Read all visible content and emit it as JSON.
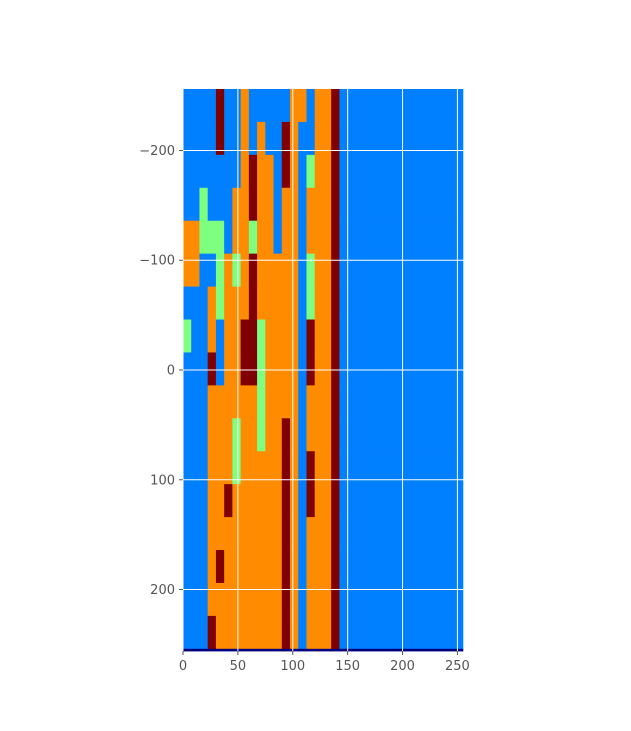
{
  "chart_data": {
    "type": "heatmap",
    "title": "",
    "xlabel": "",
    "ylabel": "",
    "colormap": "jet",
    "xlim": [
      0,
      256
    ],
    "ylim": [
      256,
      -256
    ],
    "grid": true,
    "x_ticks": [
      {
        "value": 0,
        "label": "0"
      },
      {
        "value": 50,
        "label": "50"
      },
      {
        "value": 100,
        "label": "100"
      },
      {
        "value": 150,
        "label": "150"
      },
      {
        "value": 200,
        "label": "200"
      },
      {
        "value": 250,
        "label": "250"
      }
    ],
    "y_ticks": [
      {
        "value": -200,
        "label": "−200"
      },
      {
        "value": -100,
        "label": "−100"
      },
      {
        "value": 0,
        "label": "0"
      },
      {
        "value": 100,
        "label": "100"
      },
      {
        "value": 200,
        "label": "200"
      }
    ],
    "level_colors": [
      "#00007f",
      "#007fff",
      "#7fff7f",
      "#ff8c00",
      "#7f0000"
    ],
    "column_width": 7.5,
    "row_height": 30,
    "rows_from_y": -256,
    "columns": [
      [
        1,
        1,
        1,
        1,
        3,
        3,
        1,
        2,
        1,
        1,
        1,
        1,
        1,
        1,
        1,
        1,
        1,
        0
      ],
      [
        1,
        1,
        1,
        1,
        3,
        3,
        1,
        1,
        1,
        1,
        1,
        1,
        1,
        1,
        1,
        1,
        1,
        0
      ],
      [
        1,
        1,
        1,
        2,
        2,
        1,
        1,
        1,
        1,
        1,
        1,
        1,
        1,
        1,
        1,
        1,
        1,
        0
      ],
      [
        1,
        1,
        1,
        1,
        2,
        1,
        3,
        3,
        4,
        3,
        3,
        3,
        3,
        3,
        3,
        3,
        4,
        0
      ],
      [
        4,
        4,
        1,
        1,
        2,
        2,
        2,
        1,
        1,
        3,
        3,
        3,
        3,
        3,
        4,
        3,
        3,
        0
      ],
      [
        1,
        1,
        1,
        1,
        1,
        3,
        3,
        3,
        3,
        3,
        3,
        3,
        4,
        3,
        3,
        3,
        3,
        0
      ],
      [
        1,
        1,
        1,
        3,
        3,
        2,
        3,
        3,
        3,
        3,
        2,
        2,
        3,
        3,
        3,
        3,
        3,
        0
      ],
      [
        3,
        3,
        3,
        3,
        3,
        3,
        3,
        4,
        4,
        3,
        3,
        3,
        3,
        3,
        3,
        3,
        3,
        0
      ],
      [
        1,
        1,
        4,
        4,
        2,
        4,
        4,
        4,
        4,
        3,
        3,
        3,
        3,
        3,
        3,
        3,
        3,
        0
      ],
      [
        1,
        3,
        3,
        3,
        3,
        3,
        3,
        2,
        2,
        2,
        2,
        3,
        3,
        3,
        3,
        3,
        3,
        0
      ],
      [
        1,
        1,
        3,
        3,
        3,
        3,
        3,
        3,
        3,
        3,
        3,
        3,
        3,
        3,
        3,
        3,
        3,
        0
      ],
      [
        1,
        1,
        1,
        1,
        1,
        3,
        3,
        3,
        3,
        3,
        3,
        3,
        3,
        3,
        3,
        3,
        3,
        0
      ],
      [
        1,
        4,
        4,
        3,
        3,
        3,
        3,
        3,
        3,
        3,
        4,
        4,
        4,
        4,
        4,
        4,
        4,
        0
      ],
      [
        3,
        3,
        3,
        3,
        3,
        3,
        3,
        3,
        3,
        3,
        3,
        3,
        3,
        3,
        3,
        3,
        3,
        0
      ],
      [
        3,
        1,
        1,
        1,
        1,
        1,
        1,
        1,
        1,
        1,
        1,
        1,
        1,
        1,
        1,
        1,
        1,
        0
      ],
      [
        1,
        1,
        2,
        3,
        3,
        2,
        2,
        4,
        4,
        3,
        3,
        4,
        4,
        3,
        3,
        3,
        3,
        0
      ],
      [
        3,
        3,
        3,
        3,
        3,
        3,
        3,
        3,
        3,
        3,
        3,
        3,
        3,
        3,
        3,
        3,
        3,
        0
      ],
      [
        3,
        3,
        3,
        3,
        3,
        3,
        3,
        3,
        3,
        3,
        3,
        3,
        3,
        3,
        3,
        3,
        3,
        0
      ],
      [
        4,
        4,
        4,
        4,
        4,
        4,
        4,
        4,
        4,
        4,
        4,
        4,
        4,
        4,
        4,
        4,
        4,
        0
      ],
      [
        1,
        1,
        1,
        1,
        1,
        1,
        1,
        1,
        1,
        1,
        1,
        1,
        1,
        1,
        1,
        1,
        1,
        0
      ],
      [
        1,
        1,
        1,
        1,
        1,
        1,
        1,
        1,
        1,
        1,
        1,
        1,
        1,
        1,
        1,
        1,
        1,
        0
      ],
      [
        1,
        1,
        1,
        1,
        1,
        1,
        1,
        1,
        1,
        1,
        1,
        1,
        1,
        1,
        1,
        1,
        1,
        0
      ],
      [
        1,
        1,
        1,
        1,
        1,
        1,
        1,
        1,
        1,
        1,
        1,
        1,
        1,
        1,
        1,
        1,
        1,
        0
      ],
      [
        1,
        1,
        1,
        1,
        1,
        1,
        1,
        1,
        1,
        1,
        1,
        1,
        1,
        1,
        1,
        1,
        1,
        0
      ],
      [
        1,
        1,
        1,
        1,
        1,
        1,
        1,
        1,
        1,
        1,
        1,
        1,
        1,
        1,
        1,
        1,
        1,
        0
      ],
      [
        1,
        1,
        1,
        1,
        1,
        1,
        1,
        1,
        1,
        1,
        1,
        1,
        1,
        1,
        1,
        1,
        1,
        0
      ],
      [
        1,
        1,
        1,
        1,
        1,
        1,
        1,
        1,
        1,
        1,
        1,
        1,
        1,
        1,
        1,
        1,
        1,
        0
      ],
      [
        1,
        1,
        1,
        1,
        1,
        1,
        1,
        1,
        1,
        1,
        1,
        1,
        1,
        1,
        1,
        1,
        1,
        0
      ],
      [
        1,
        1,
        1,
        1,
        1,
        1,
        1,
        1,
        1,
        1,
        1,
        1,
        1,
        1,
        1,
        1,
        1,
        0
      ],
      [
        1,
        1,
        1,
        1,
        1,
        1,
        1,
        1,
        1,
        1,
        1,
        1,
        1,
        1,
        1,
        1,
        1,
        0
      ],
      [
        1,
        1,
        1,
        1,
        1,
        1,
        1,
        1,
        1,
        1,
        1,
        1,
        1,
        1,
        1,
        1,
        1,
        0
      ],
      [
        1,
        1,
        1,
        1,
        1,
        1,
        1,
        1,
        1,
        1,
        1,
        1,
        1,
        1,
        1,
        1,
        1,
        0
      ],
      [
        1,
        1,
        1,
        1,
        1,
        1,
        1,
        1,
        1,
        1,
        1,
        1,
        1,
        1,
        1,
        1,
        1,
        0
      ],
      [
        1,
        1,
        1,
        1,
        1,
        1,
        1,
        1,
        1,
        1,
        1,
        1,
        1,
        1,
        1,
        1,
        1,
        0
      ]
    ]
  }
}
